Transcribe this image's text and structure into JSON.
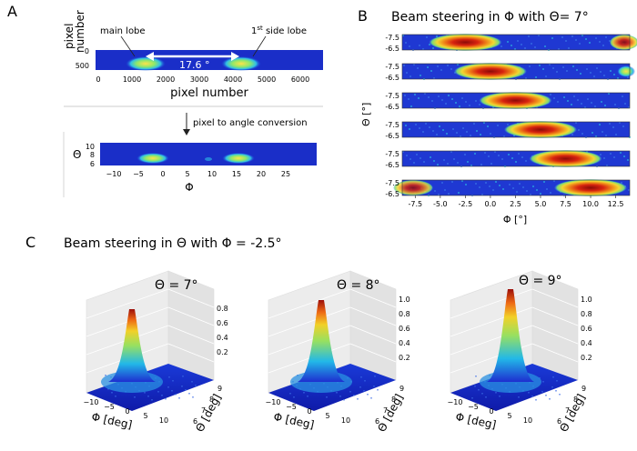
{
  "panel_a": {
    "letter": "A",
    "top": {
      "ylabel_line1": "pixel",
      "ylabel_line2": "number",
      "xlabel": "pixel number",
      "xticks": [
        "0",
        "1000",
        "2000",
        "3000",
        "4000",
        "5000",
        "6000"
      ],
      "yticks": [
        "0",
        "500"
      ],
      "main_lobe": "main lobe",
      "side_lobe_sup": "st",
      "side_lobe_pre": "1",
      "side_lobe_post": " side lobe",
      "separation": "17.6 °"
    },
    "conversion": "pixel to angle conversion",
    "bottom": {
      "ylabel": "Θ",
      "xlabel": "Φ",
      "xticks": [
        "−10",
        "−5",
        "0",
        "5",
        "10",
        "15",
        "20",
        "25"
      ],
      "yticks": [
        "10",
        "8",
        "6"
      ]
    }
  },
  "panel_b": {
    "letter": "B",
    "title": "Beam steering in Φ with Θ= 7°",
    "ylabel": "Θ [°]",
    "xlabel": "Φ [°]",
    "ytick_top": "-7.5",
    "ytick_bottom": "-6.5",
    "xticks": [
      "-7.5",
      "-5.0",
      "-2.5",
      "0.0",
      "2.5",
      "5.0",
      "7.5",
      "10.0",
      "12.5"
    ],
    "strips": [
      {
        "phi": -2.5
      },
      {
        "phi": 0.0
      },
      {
        "phi": 2.5
      },
      {
        "phi": 5.0
      },
      {
        "phi": 7.5
      },
      {
        "phi": 10.0
      }
    ]
  },
  "panel_c": {
    "letter": "C",
    "title": "Beam steering in Θ with Φ = -2.5°",
    "plots": [
      {
        "title": "Θ = 7°",
        "zticks": [
          "0.8",
          "0.6",
          "0.4",
          "0.2"
        ]
      },
      {
        "title": "Θ = 8°",
        "zticks": [
          "1.0",
          "0.8",
          "0.6",
          "0.4",
          "0.2"
        ]
      },
      {
        "title": "Θ = 9°",
        "zticks": [
          "1.0",
          "0.8",
          "0.6",
          "0.4",
          "0.2"
        ]
      }
    ],
    "xaxis_label": "Φ [deg]",
    "yaxis_label": "Θ [deg]",
    "xticks": [
      "−10",
      "−5",
      "0",
      "5",
      "10"
    ],
    "yticks": [
      "6",
      "7",
      "8",
      "9"
    ]
  },
  "colors": {
    "background": "#1622c8",
    "peak": "#d01a10",
    "mid": "#f2d020",
    "edge": "#28c8e0"
  }
}
